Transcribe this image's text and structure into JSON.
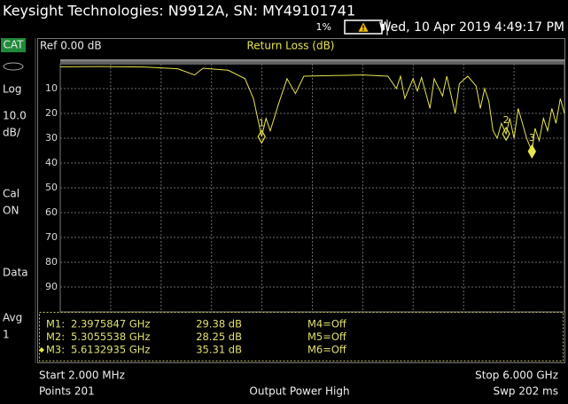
{
  "header": {
    "title": "Keysight Technologies: N9912A, SN: MY49101741",
    "battery": "1%",
    "datetime": "Wed, 10 Apr 2019 4:49:17 PM"
  },
  "sidebar": {
    "mode": "CAT",
    "items": [
      "Log",
      "10.0",
      "dB/",
      "Cal",
      "ON",
      "Data",
      "Avg",
      "1"
    ]
  },
  "chart_data": {
    "type": "line",
    "reference": "Ref 0.00 dB",
    "title": "Return Loss (dB)",
    "xlim": [
      0.002,
      6
    ],
    "ylim": [
      0,
      100
    ],
    "y_reversed": true,
    "yticks": [
      10,
      20,
      30,
      40,
      50,
      60,
      70,
      80,
      90
    ],
    "grid": true,
    "series": [
      {
        "color": "#e6e64c",
        "x": [
          0.002,
          0.5,
          1.0,
          1.4,
          1.6,
          1.7,
          2.0,
          2.2,
          2.3,
          2.3975847,
          2.45,
          2.5,
          2.6,
          2.7,
          2.8,
          2.9,
          3.2,
          3.6,
          3.9,
          4.0,
          4.05,
          4.1,
          4.2,
          4.25,
          4.3,
          4.4,
          4.45,
          4.55,
          4.6,
          4.7,
          4.75,
          4.85,
          4.95,
          5.0,
          5.05,
          5.1,
          5.15,
          5.2,
          5.25,
          5.3055538,
          5.35,
          5.4,
          5.45,
          5.5,
          5.55,
          5.6132935,
          5.65,
          5.7,
          5.75,
          5.8,
          5.85,
          5.9,
          5.95,
          6.0
        ],
        "values": [
          1.2,
          1.1,
          1.3,
          2.0,
          4.5,
          1.8,
          2.6,
          6,
          14,
          29.38,
          22,
          27,
          16,
          6,
          12,
          5,
          4.8,
          4.5,
          5,
          10,
          5,
          14,
          6,
          11,
          5.5,
          18,
          6,
          13,
          5,
          20,
          8,
          5,
          9,
          18,
          10,
          15,
          27,
          30,
          24,
          28.25,
          22,
          30,
          18,
          24,
          30,
          35.31,
          26,
          31,
          22,
          27,
          18,
          24,
          14,
          20
        ]
      }
    ],
    "markers": [
      {
        "label": "1",
        "x": 2.3975847,
        "value": 29.38
      },
      {
        "label": "2",
        "x": 5.3055538,
        "value": 28.25
      },
      {
        "label": "3",
        "x": 5.6132935,
        "value": 35.31
      }
    ]
  },
  "marker_table": {
    "rows": [
      [
        "M1:",
        "2.3975847 GHz",
        "29.38 dB",
        "M4=Off"
      ],
      [
        "M2:",
        "5.3055538 GHz",
        "28.25 dB",
        "M5=Off"
      ],
      [
        "M3:",
        "5.6132935 GHz",
        "35.31 dB",
        "M6=Off"
      ]
    ]
  },
  "footer": {
    "start": "Start 2.000 MHz",
    "stop": "Stop 6.000 GHz",
    "points": "Points 201",
    "power": "Output Power High",
    "sweep": "Swp 202 ms"
  }
}
